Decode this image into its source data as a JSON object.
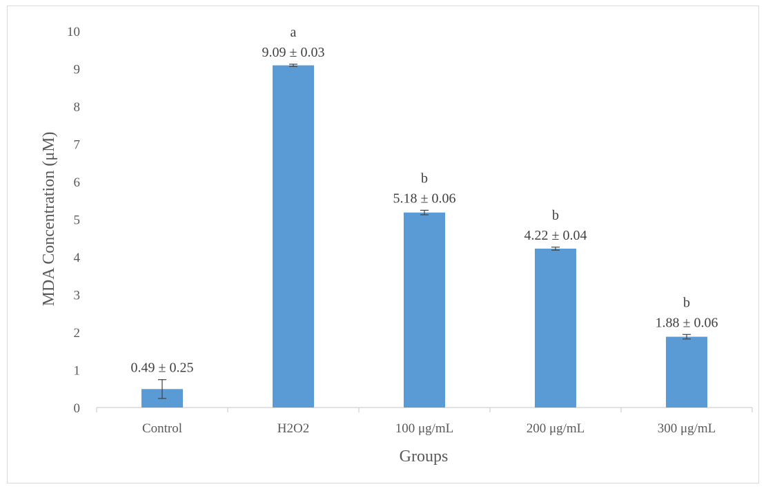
{
  "chart_data": {
    "type": "bar",
    "title": "",
    "xlabel": "Groups",
    "ylabel": "MDA Concentration (μM)",
    "ylim": [
      0,
      10
    ],
    "yticks": [
      "0",
      "1",
      "2",
      "3",
      "4",
      "5",
      "6",
      "7",
      "8",
      "9",
      "10"
    ],
    "grid": false,
    "legend": "none",
    "bar_color": "#5b9bd5",
    "categories": [
      "Control",
      "H2O2",
      "100 μg/mL",
      "200 μg/mL",
      "300 μg/mL"
    ],
    "values": [
      0.49,
      9.09,
      5.18,
      4.22,
      1.88
    ],
    "errors": [
      0.25,
      0.03,
      0.06,
      0.04,
      0.06
    ],
    "value_labels": [
      "0.49 ± 0.25",
      "9.09 ± 0.03",
      "5.18 ± 0.06",
      "4.22 ± 0.04",
      "1.88 ± 0.06"
    ],
    "significance_letters": [
      "",
      "a",
      "b",
      "b",
      "b"
    ]
  }
}
